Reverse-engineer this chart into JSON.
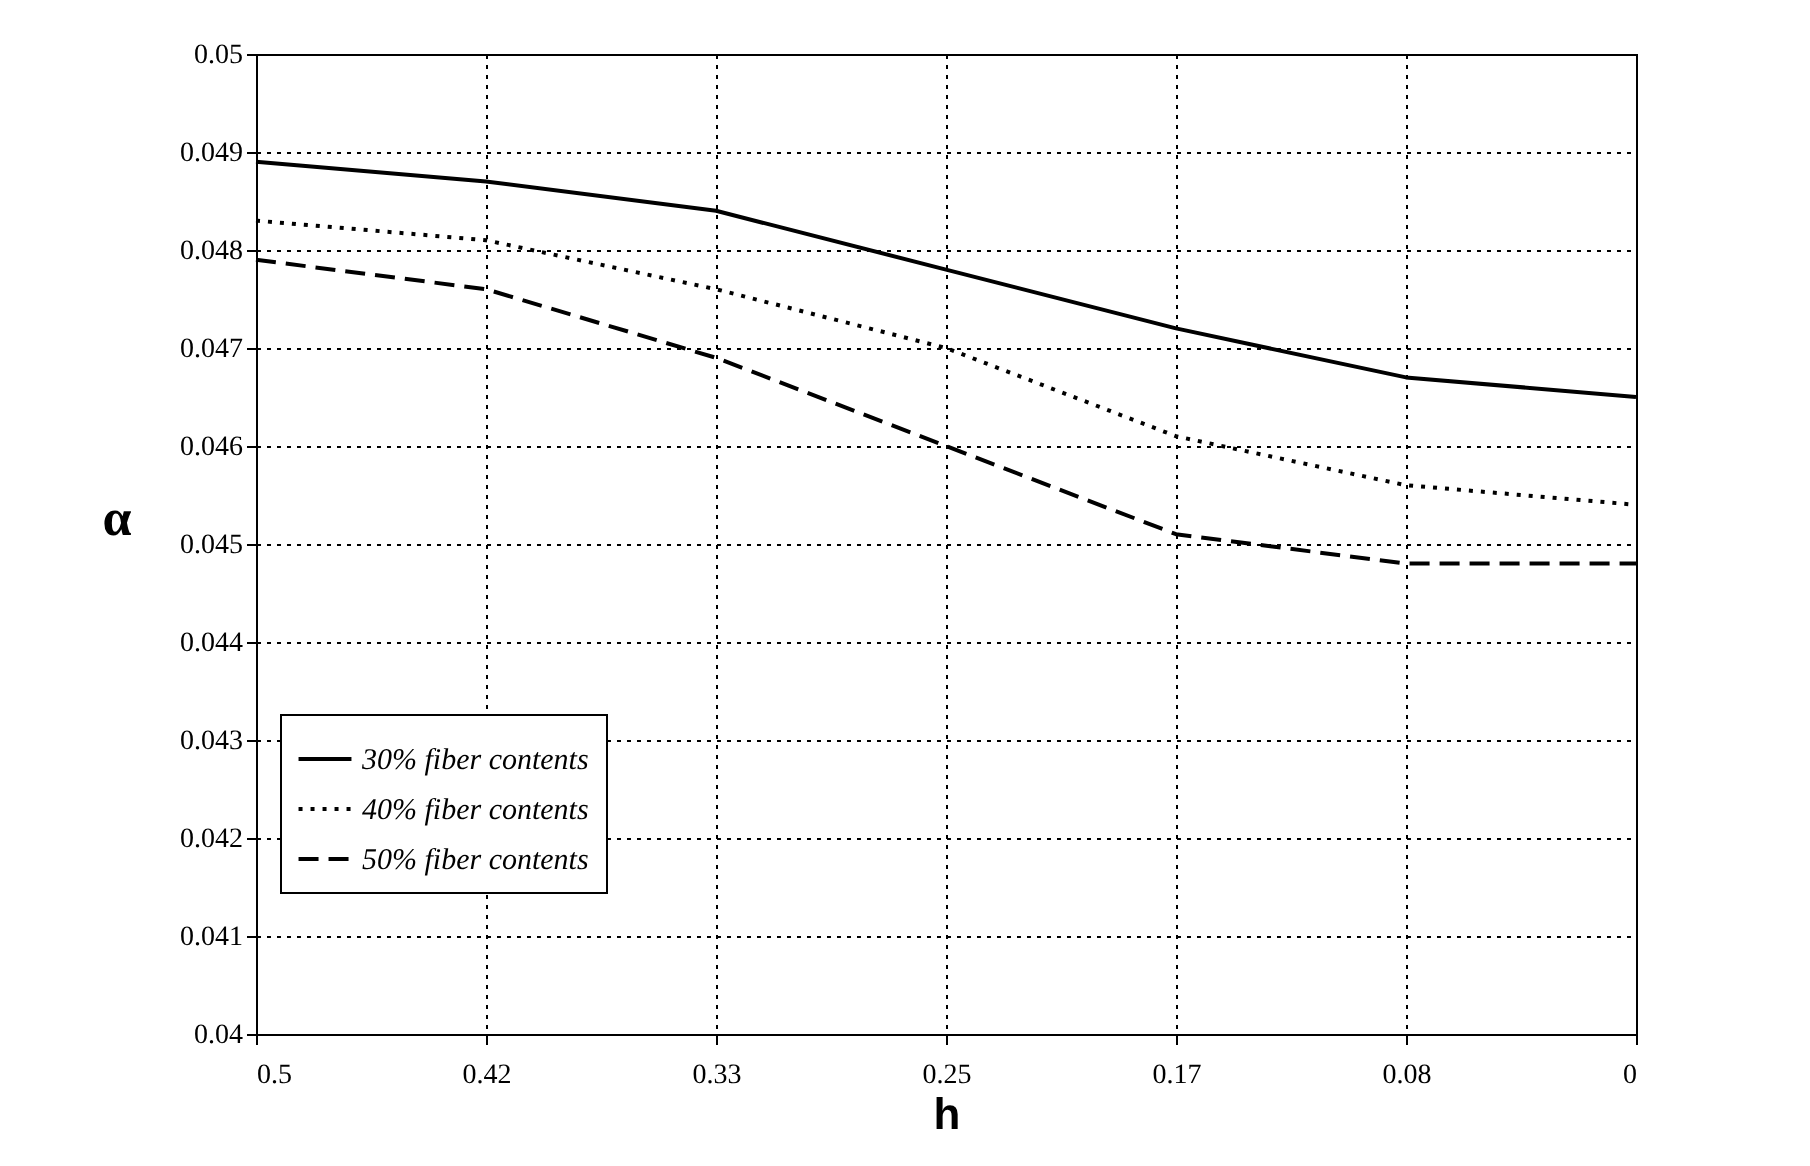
{
  "chart_data": {
    "type": "line",
    "xlabel": "h",
    "ylabel": "α",
    "categories": [
      "0.5",
      "0.42",
      "0.33",
      "0.25",
      "0.17",
      "0.08",
      "0"
    ],
    "series": [
      {
        "name": "30% fiber contents",
        "color": "#000000",
        "line_style": "solid",
        "values": [
          0.0489,
          0.0487,
          0.0484,
          0.0478,
          0.0472,
          0.0467,
          0.0465
        ]
      },
      {
        "name": "40% fiber contents",
        "color": "#000000",
        "line_style": "dotted",
        "values": [
          0.0483,
          0.0481,
          0.0476,
          0.047,
          0.0461,
          0.0456,
          0.0454
        ]
      },
      {
        "name": "50% fiber contents",
        "color": "#000000",
        "line_style": "dashed",
        "values": [
          0.0479,
          0.0476,
          0.0469,
          0.046,
          0.0451,
          0.0448,
          0.0448
        ]
      }
    ],
    "ylim": [
      0.04,
      0.05
    ],
    "yticks": [
      0.04,
      0.041,
      0.042,
      0.043,
      0.044,
      0.045,
      0.046,
      0.047,
      0.048,
      0.049,
      0.05
    ],
    "grid": true,
    "legend": "bottom left",
    "marker": "none"
  }
}
